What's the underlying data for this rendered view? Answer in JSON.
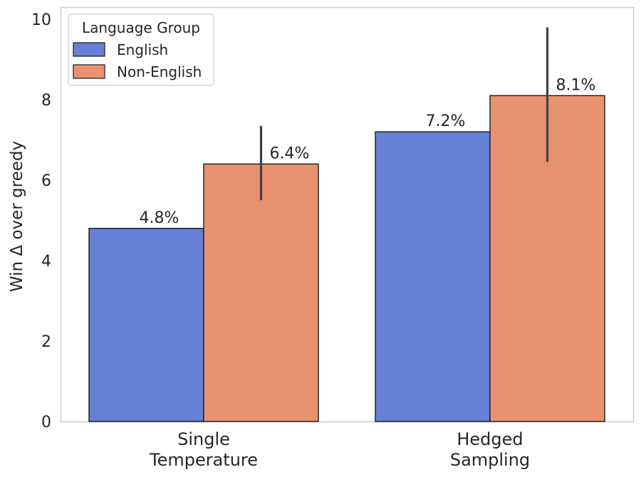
{
  "chart_data": {
    "type": "bar",
    "title": "",
    "xlabel": "",
    "ylabel": "Win Δ over greedy",
    "ylim": [
      0,
      10.3
    ],
    "yticks": [
      0,
      2,
      4,
      6,
      8,
      10
    ],
    "grid": false,
    "categories": [
      [
        "Single",
        "Temperature"
      ],
      [
        "Hedged",
        "Sampling"
      ]
    ],
    "series": [
      {
        "name": "English",
        "color": "#6680d5",
        "values": [
          4.8,
          7.2
        ],
        "labels": [
          "4.8%",
          "7.2%"
        ],
        "error": [
          null,
          null
        ]
      },
      {
        "name": "Non-English",
        "color": "#e9926f",
        "values": [
          6.4,
          8.1
        ],
        "labels": [
          "6.4%",
          "8.1%"
        ],
        "error": [
          [
            5.5,
            7.35
          ],
          [
            6.45,
            9.8
          ]
        ]
      }
    ],
    "legend": {
      "title": "Language Group",
      "position": "top-left"
    }
  }
}
